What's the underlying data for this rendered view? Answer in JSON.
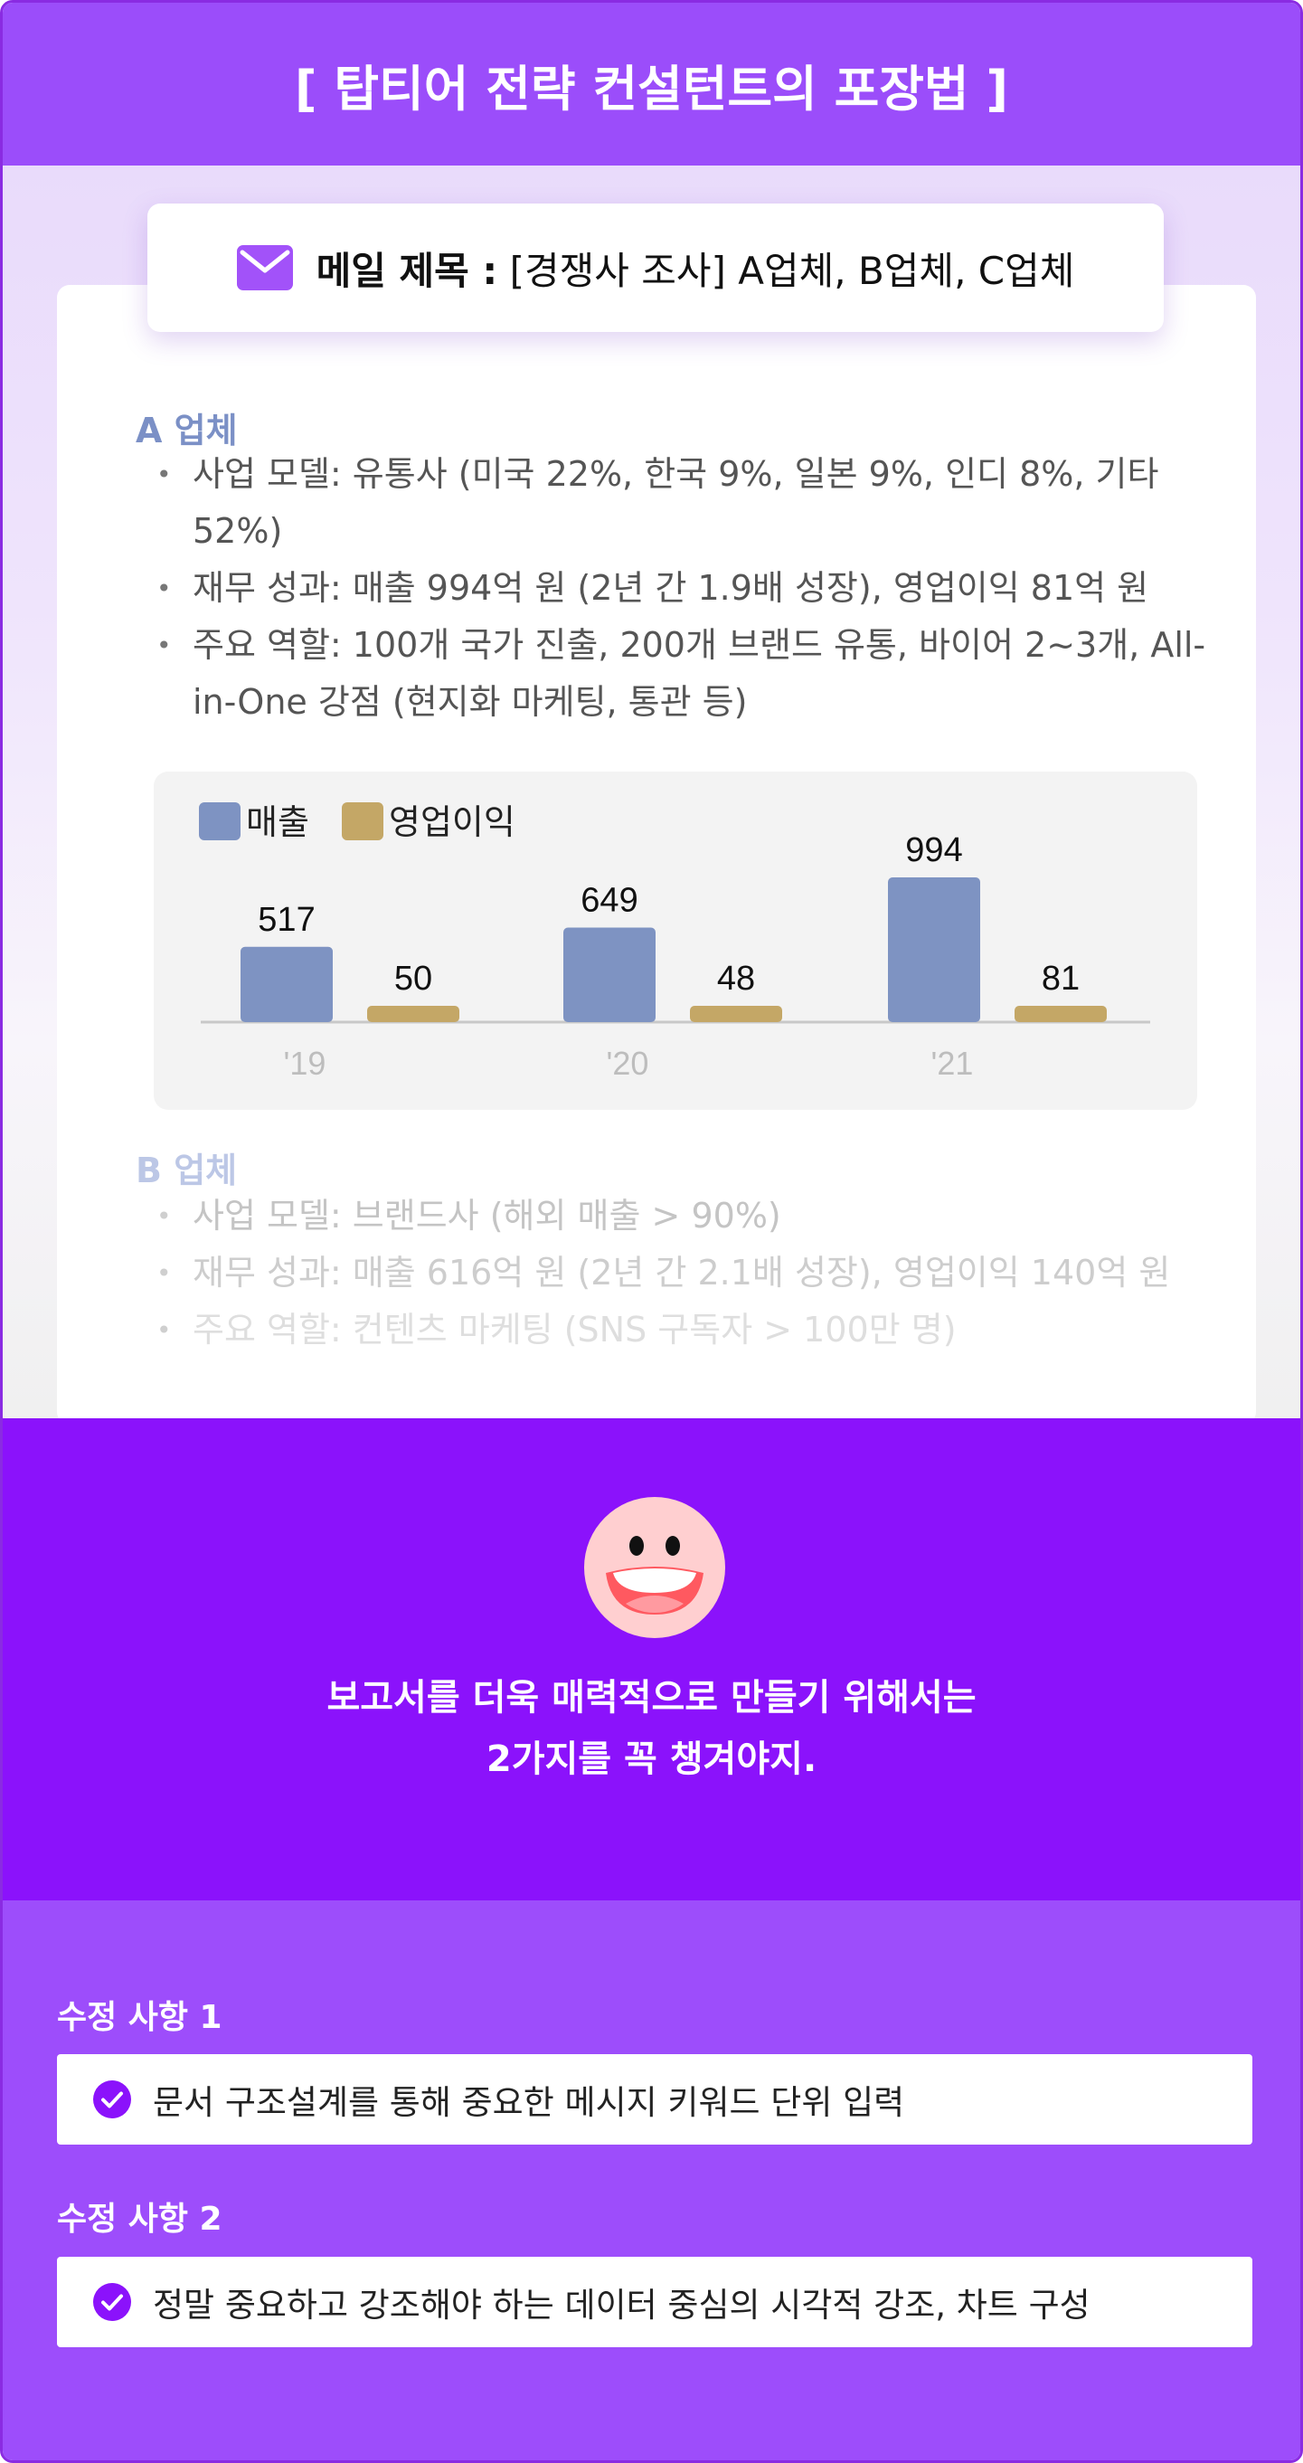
{
  "header": {
    "title": "[ 탑티어 전략 컨설턴트의 포장법 ]"
  },
  "mail": {
    "label": "메일 제목 :",
    "subject": " [경쟁사 조사] A업체, B업체, C업체",
    "icon": "envelope-icon"
  },
  "company_a": {
    "title": "A 업체",
    "bullets": [
      "사업 모델: 유통사 (미국 22%, 한국 9%, 일본 9%, 인디 8%, 기타 52%)",
      "재무 성과: 매출 994억 원 (2년 간 1.9배 성장), 영업이익 81억 원",
      "주요 역할: 100개 국가 진출, 200개 브랜드 유통, 바이어 2~3개, All-in-One 강점 (현지화 마케팅, 통관 등)"
    ]
  },
  "chart_data": {
    "type": "bar",
    "categories": [
      "'19",
      "'20",
      "'21"
    ],
    "series": [
      {
        "name": "매출",
        "values": [
          517,
          649,
          994
        ],
        "color": "#7e93c2"
      },
      {
        "name": "영업이익",
        "values": [
          50,
          48,
          81
        ],
        "color": "#c4a766"
      }
    ],
    "legend_position": "top-left",
    "grid": false,
    "title": "",
    "xlabel": "",
    "ylabel": ""
  },
  "company_b": {
    "title": "B 업체",
    "bullets": [
      "사업 모델: 브랜드사 (해외 매출 > 90%)",
      "재무 성과: 매출 616억 원 (2년 간 2.1배 성장), 영업이익 140억 원",
      "주요 역할: 컨텐츠 마케팅 (SNS 구독자 > 100만 명)"
    ]
  },
  "message": {
    "line1": "보고서를 더욱 매력적으로 만들기 위해서는",
    "line2": "2가지를 꼭 챙겨야지.",
    "icon": "smiling-face-icon"
  },
  "fixes": [
    {
      "heading": "수정 사항 1",
      "text": "문서 구조설계를 통해 중요한 메시지 키워드 단위 입력"
    },
    {
      "heading": "수정 사항 2",
      "text": "정말 중요하고 강조해야 하는 데이터 중심의 시각적 강조, 차트 구성"
    }
  ],
  "colors": {
    "header": "#9b4dfa",
    "accent": "#8b12fb",
    "fix_section": "#9d4dfb",
    "company_a_title": "#7b90c6"
  }
}
